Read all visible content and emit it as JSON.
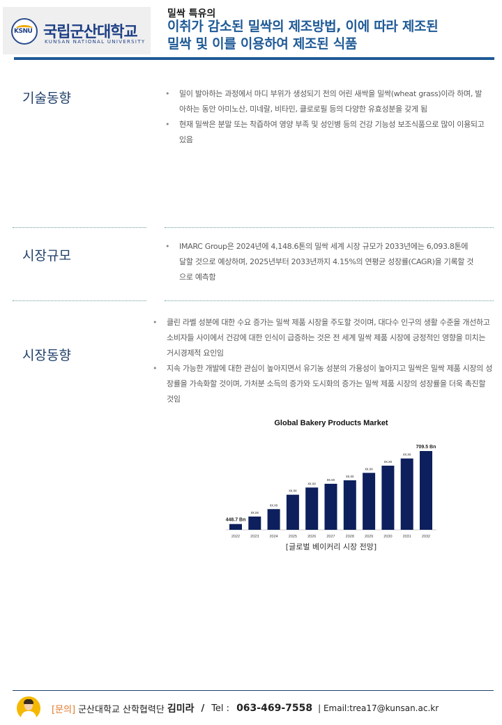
{
  "header": {
    "logo": {
      "korean_name": "국립군산대학교",
      "english_name": "KUNSAN NATIONAL UNIVERSITY",
      "emblem": "KSNU"
    },
    "subtitle": "밀싹 특유의",
    "title_line1": "이취가 감소된 밀싹의 제조방법, 이에 따라 제조된",
    "title_line2": "밀싹 및 이를 이용하여 제조된 식품",
    "accent_color": "#1f5a96"
  },
  "sections": [
    {
      "label": "기술동향",
      "bullets": [
        "밀이 발아하는 과정에서 마디 부위가 생성되기 전의 어린 새싹을 밀싹(wheat grass)이라 하며, 발아하는 동안 아미노산, 미네랄, 비타민, 클로로필 등의 다양한 유효성분을 갖게 됨",
        "현재 밀싹은 분말 또는 착즙하여 영양 부족 및 성인병 등의 건강 기능성 보조식품으로 많이 이용되고 있음"
      ]
    },
    {
      "label": "시장규모",
      "bullets": [
        "IMARC Group은 2024년에 4,148.6톤의 밀싹 세계 시장 규모가 2033년에는 6,093.8톤에 달할 것으로 예상하며, 2025년부터 2033년까지 4.15%의 연평균 성장률(CAGR)을 기록할 것으로 예측함"
      ]
    },
    {
      "label": "시장동향",
      "bullets": [
        "클린 라벨 성분에 대한 수요 증가는 밀싹 제품 시장을 주도할 것이며, 대다수 인구의 생활 수준을 개선하고 소비자들 사이에서 건강에 대한 인식이 급증하는 것은 전 세계 밀싹 제품 시장에 긍정적인 영향을 미치는 거시경제적 요인임",
        "지속 가능한 개발에 대한 관심이 높아지면서 유기농 성분의 가용성이 높아지고 밀싹은 밀싹 제품 시장의 성장률을 가속화할 것이며, 가처분 소득의 증가와 도시화의 증가는 밀싹 제품 시장의 성장률을 더욱 촉진할 것임"
      ]
    }
  ],
  "chart_data": {
    "type": "bar",
    "title": "Global Bakery Products Market",
    "caption": "[글로벌 베이커리 시장 전망]",
    "categories": [
      "2022",
      "2023",
      "2024",
      "2025",
      "2026",
      "2027",
      "2028",
      "2029",
      "2030",
      "2031",
      "2032"
    ],
    "values": [
      448.7,
      475.4,
      502.0,
      553.4,
      579.1,
      592.5,
      604.9,
      631.5,
      657.2,
      682.9,
      709.5
    ],
    "data_labels": [
      "448.7 Bn",
      "xx.xx",
      "xx.xx",
      "xx.xx",
      "xx.xx",
      "xx.xx",
      "xx.xx",
      "xx.xx",
      "xx.xx",
      "xx.xx",
      "709.5 Bn"
    ],
    "bar_color": "#0d1f5c",
    "grid": false,
    "legend": "none"
  },
  "footer": {
    "inquiry_label": "[문의]",
    "org": "군산대학교 산학협력단",
    "name": "김미라",
    "slash": "/",
    "tel_label": "Tel :",
    "phone": "063-469-7558",
    "email": "| Email:trea17@kunsan.ac.kr"
  }
}
